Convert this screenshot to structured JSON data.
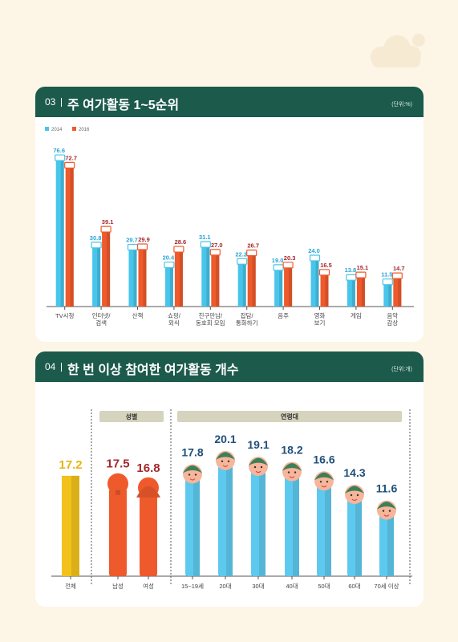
{
  "colors": {
    "c2014": "#48c5ea",
    "c2016": "#ef5a2c",
    "header": "#1c5a4c",
    "total": "#f2c21b",
    "male": "#ef5a2c",
    "female": "#ef5a2c",
    "age": "#5ec9ef",
    "valueBlue": "#2aa3d4",
    "valueRed": "#a3282e"
  },
  "section1": {
    "number": "03",
    "title": "주 여가활동 1~5순위",
    "unit": "(단위:%)",
    "chart_data": {
      "type": "bar",
      "categories": [
        "TV시청",
        "인터넷/\n검색",
        "산책",
        "쇼핑/\n외식",
        "친구만남/\n동호회 모임",
        "잡담/\n통화하기",
        "음주",
        "영화\n보기",
        "게임",
        "음악\n감상"
      ],
      "series": [
        {
          "name": "2014",
          "values": [
            76.6,
            30.8,
            29.7,
            20.4,
            31.1,
            22.2,
            19.0,
            24.0,
            13.8,
            11.5
          ]
        },
        {
          "name": "2016",
          "values": [
            72.7,
            39.1,
            29.9,
            28.6,
            27.0,
            26.7,
            20.3,
            16.5,
            15.1,
            14.7
          ]
        }
      ],
      "value_labels_2014": [
        "76.6",
        "30.8",
        "29.7",
        "20.4",
        "31.1",
        "22.2",
        "19.0",
        "24.0",
        "13.8",
        "11.5"
      ],
      "value_labels_2016": [
        "72.7",
        "39.1",
        "29.9",
        "28.6",
        "27.0",
        "26.7",
        "20.3",
        "16.5",
        "15.1",
        "14.7"
      ],
      "ylim": [
        0,
        80
      ],
      "legend_position": "top-left"
    }
  },
  "section2": {
    "number": "04",
    "title": "한 번 이상 참여한 여가활동 개수",
    "unit": "(단위:개)",
    "group_gender": "성별",
    "group_age": "연령대",
    "chart_data": {
      "type": "bar",
      "categories": [
        "전체",
        "남성",
        "여성",
        "15~19세",
        "20대",
        "30대",
        "40대",
        "50대",
        "60대",
        "70세 이상"
      ],
      "values": [
        17.2,
        17.5,
        16.8,
        17.8,
        20.1,
        19.1,
        18.2,
        16.6,
        14.3,
        11.6
      ],
      "value_labels": [
        "17.2",
        "17.5",
        "16.8",
        "17.8",
        "20.1",
        "19.1",
        "18.2",
        "16.6",
        "14.3",
        "11.6"
      ],
      "ylim": [
        0,
        22
      ]
    }
  }
}
